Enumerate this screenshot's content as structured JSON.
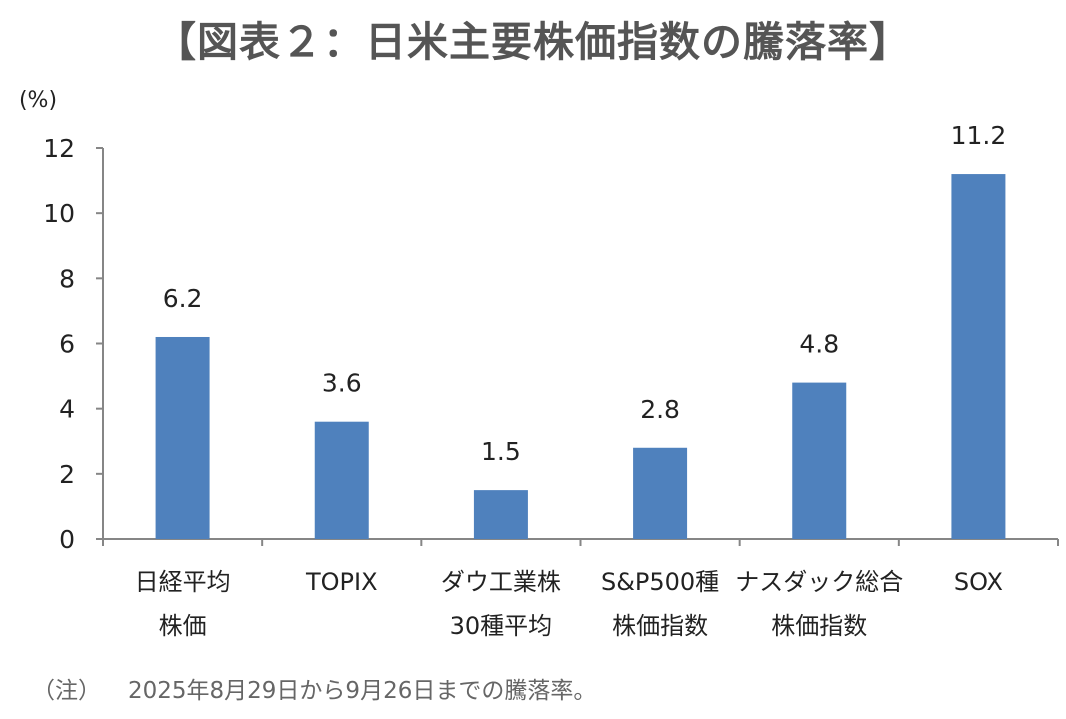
{
  "chart_data": {
    "type": "bar",
    "title": "【図表２：日米主要株価指数の騰落率】",
    "ylabel": "(%)",
    "ylim": [
      0,
      12
    ],
    "yticks": [
      0,
      2,
      4,
      6,
      8,
      10,
      12
    ],
    "categories": [
      [
        "日経平均",
        "株価"
      ],
      [
        "TOPIX"
      ],
      [
        "ダウ工業株",
        "30種平均"
      ],
      [
        "S&P500種",
        "株価指数"
      ],
      [
        "ナスダック総合",
        "株価指数"
      ],
      [
        "SOX"
      ]
    ],
    "values": [
      6.2,
      3.6,
      1.5,
      2.8,
      4.8,
      11.2
    ],
    "value_labels": [
      "6.2",
      "3.6",
      "1.5",
      "2.8",
      "4.8",
      "11.2"
    ],
    "bar_color": "#4f81bd",
    "grid": false,
    "note_prefix": "（注）",
    "note": "2025年8月29日から9月26日までの騰落率。"
  }
}
